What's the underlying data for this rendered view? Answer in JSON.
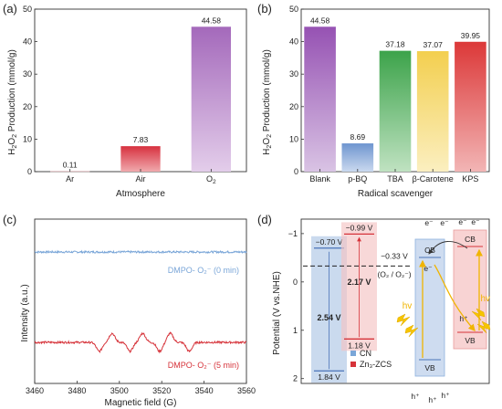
{
  "panels": {
    "a": "(a)",
    "b": "(b)",
    "c": "(c)",
    "d": "(d)"
  },
  "chart_data": [
    {
      "type": "bar",
      "panel": "a",
      "categories": [
        "Ar",
        "Air",
        "O2"
      ],
      "category_labels": [
        {
          "main": "Ar",
          "sub": ""
        },
        {
          "main": "Air",
          "sub": ""
        },
        {
          "main": "O",
          "sub": "2"
        }
      ],
      "values": [
        0.11,
        7.83,
        44.58
      ],
      "value_labels": [
        "0.11",
        "7.83",
        "44.58"
      ],
      "colors": [
        "#f2c7c7",
        "#d93a45",
        "#b57fc4"
      ],
      "xlabel": "Atmosphere",
      "ylabel": {
        "pre": "H",
        "sub1": "2",
        "mid": "O",
        "sub2": "2",
        "post": " Production (mmol/g)"
      },
      "ylim": [
        0,
        50
      ],
      "yticks": [
        0,
        10,
        20,
        30,
        40,
        50
      ]
    },
    {
      "type": "bar",
      "panel": "b",
      "categories": [
        "Blank",
        "p-BQ",
        "TBA",
        "β-Carotene",
        "KPS"
      ],
      "values": [
        44.58,
        8.69,
        37.18,
        37.07,
        39.95
      ],
      "value_labels": [
        "44.58",
        "8.69",
        "37.18",
        "37.07",
        "39.95"
      ],
      "colors": [
        "#9b59b6",
        "#7fa3d6",
        "#4fae58",
        "#f5d66a",
        "#e04848"
      ],
      "xlabel": "Radical scavenger",
      "ylabel": {
        "pre": "H",
        "sub1": "2",
        "mid": "O",
        "sub2": "2",
        "post": " Production (mmol/g)"
      },
      "ylim": [
        0,
        50
      ],
      "yticks": [
        0,
        10,
        20,
        30,
        40,
        50
      ]
    },
    {
      "type": "line",
      "panel": "c",
      "xlabel": "Magnetic field (G)",
      "ylabel": "Intensity (a.u.)",
      "xlim": [
        3460,
        3560
      ],
      "xticks": [
        3460,
        3480,
        3500,
        3520,
        3540,
        3560
      ],
      "series": [
        {
          "name": "DMPO- O₂⁻ (0 min)",
          "color": "#7aa6d8",
          "baseline": 0.8,
          "peaks": []
        },
        {
          "name": "DMPO- O₂⁻ (5 min)",
          "color": "#d6333a",
          "baseline": 0.25,
          "peaks": [
            [
              3490.5,
              -1
            ],
            [
              3496.5,
              1
            ],
            [
              3505,
              -1
            ],
            [
              3511,
              1
            ],
            [
              3519,
              -1
            ],
            [
              3524,
              1
            ],
            [
              3533,
              -1
            ]
          ],
          "peak_amplitude": 0.055
        }
      ]
    },
    {
      "type": "diagram",
      "panel": "d",
      "ylabel": "Potential (V vs.NHE)",
      "ylim": [
        -1.3,
        2.1
      ],
      "yticks": [
        -1,
        0,
        1,
        2
      ],
      "redox_level": {
        "value": -0.33,
        "label": "−0.33 V",
        "couple": "(O₂ / O₂⁻)"
      },
      "bands": [
        {
          "name": "CN",
          "cb": -0.7,
          "vb": 1.84,
          "cb_label": "−0.70 V",
          "vb_label": "1.84 V",
          "gap_label": "2.54 V",
          "color": "#b8cde8",
          "edge": "#4a73b8"
        },
        {
          "name": "Zn₃-ZCS",
          "cb": -0.99,
          "vb": 1.18,
          "cb_label": "−0.99 V",
          "vb_label": "1.18 V",
          "gap_label": "2.17 V",
          "color": "#f5c3c3",
          "edge": "#d6333a"
        }
      ],
      "legend": [
        {
          "label": "CN",
          "color": "#7aa6d8"
        },
        {
          "label": "Zn₃-ZCS",
          "color": "#d6333a"
        }
      ],
      "scheme": {
        "cb": "CB",
        "vb": "VB",
        "electron": "e⁻",
        "hole": "h⁺",
        "light": "hv"
      }
    }
  ]
}
